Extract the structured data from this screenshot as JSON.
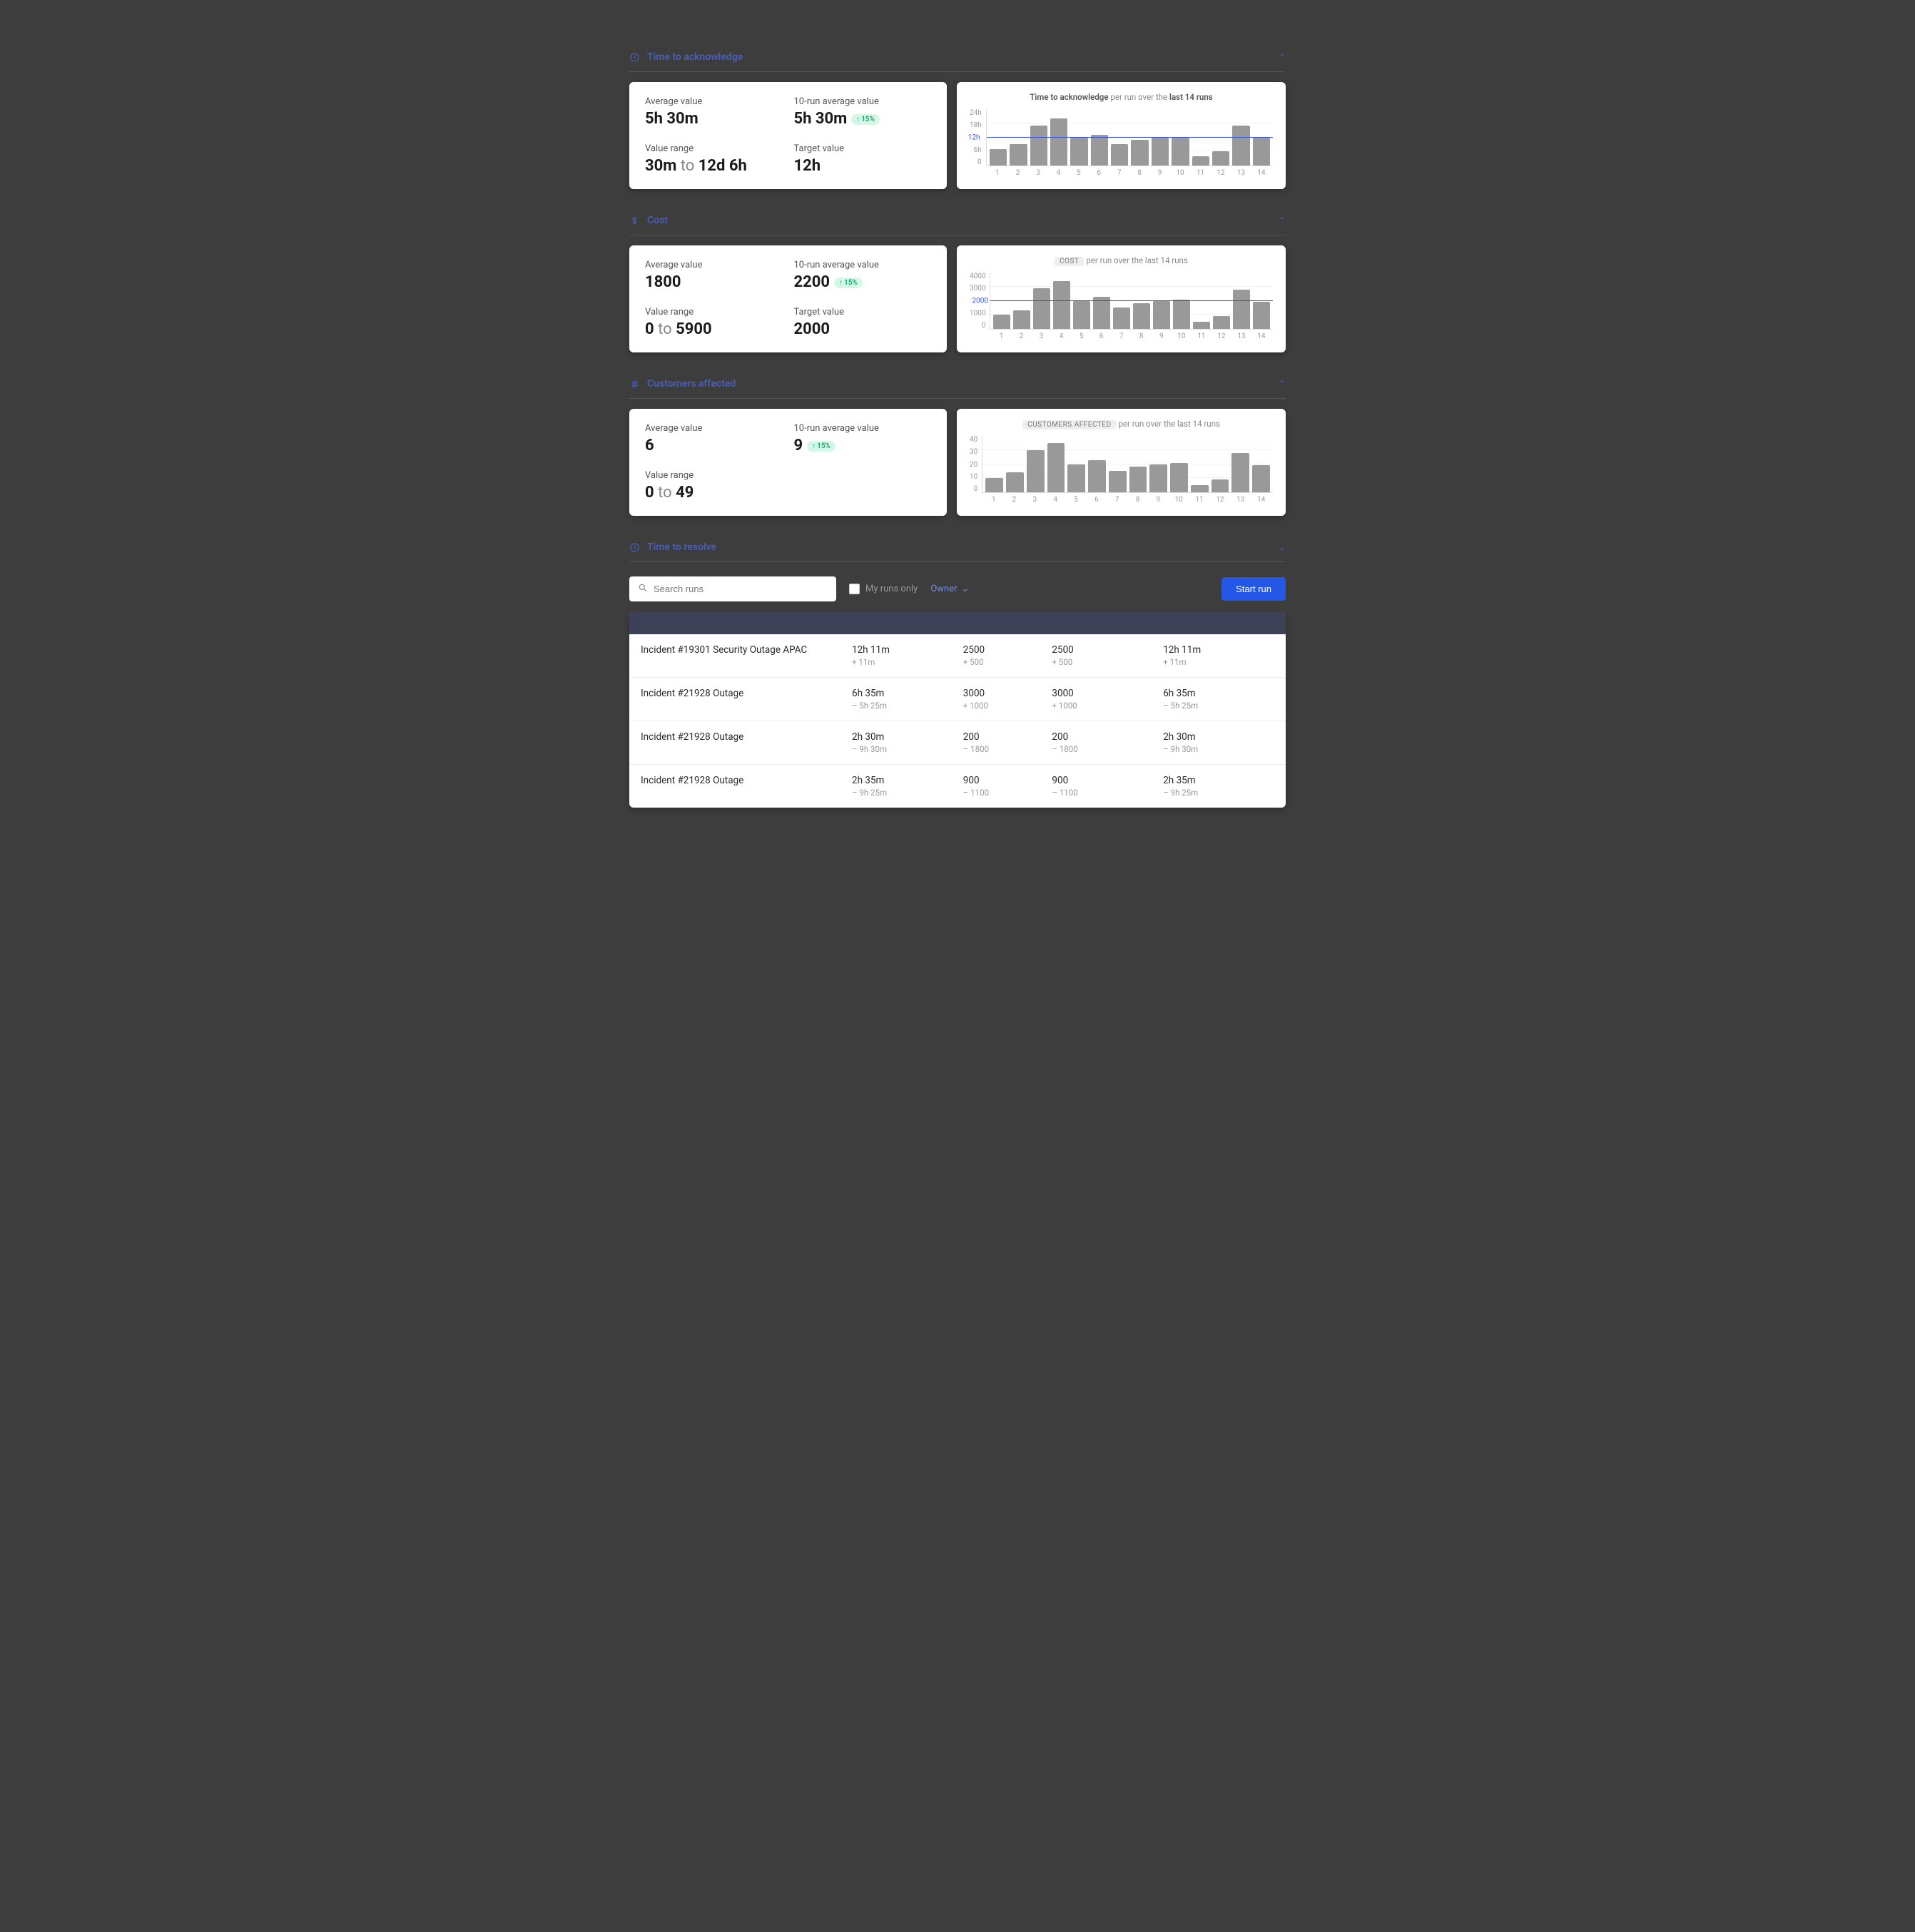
{
  "sections": [
    {
      "id": "tta",
      "icon": "clock",
      "title": "Time to acknowledge",
      "stats": {
        "avg_label": "Average value",
        "avg_value": "5h 30m",
        "ravg_label": "10-run average value",
        "ravg_value": "5h 30m",
        "ravg_badge": "15%",
        "range_label": "Value range",
        "range_from": "30m",
        "range_to": "12d 6h",
        "target_label": "Target value",
        "target_value": "12h"
      },
      "chart": {
        "title_pre": "Time to acknowledge",
        "title_mid": " per run over the ",
        "title_post": "last 14 runs",
        "title_style": "em",
        "y_ticks": [
          "24h",
          "18h",
          "12h",
          "6h",
          "0"
        ],
        "y_max": 24,
        "target_at": 12,
        "target_label": "12h",
        "bar_color": "#999999",
        "grid_color": "#f0f0f0",
        "target_color": "#3355dd",
        "values": [
          7,
          9,
          17,
          20,
          12,
          13,
          9,
          11,
          12,
          12,
          4,
          6,
          17,
          12
        ],
        "x_labels": [
          "1",
          "2",
          "3",
          "4",
          "5",
          "6",
          "7",
          "8",
          "9",
          "10",
          "11",
          "12",
          "13",
          "14"
        ]
      }
    },
    {
      "id": "cost",
      "icon": "dollar",
      "title": "Cost",
      "stats": {
        "avg_label": "Average value",
        "avg_value": "1800",
        "ravg_label": "10-run average value",
        "ravg_value": "2200",
        "ravg_badge": "15%",
        "range_label": "Value range",
        "range_from": "0",
        "range_to": "5900",
        "target_label": "Target value",
        "target_value": "2000"
      },
      "chart": {
        "title_pill": "COST",
        "title_mid": " per run over the last 14 runs",
        "title_style": "pill",
        "y_ticks": [
          "4000",
          "3000",
          "2000",
          "1000",
          "0"
        ],
        "y_max": 4000,
        "target_at": 2000,
        "target_label": "2000",
        "bar_color": "#999999",
        "grid_color": "#f0f0f0",
        "target_color": "#3355dd",
        "values": [
          1000,
          1300,
          2900,
          3400,
          2000,
          2300,
          1500,
          1800,
          2000,
          2100,
          500,
          900,
          2800,
          1900
        ],
        "x_labels": [
          "1",
          "2",
          "3",
          "4",
          "5",
          "6",
          "7",
          "8",
          "9",
          "10",
          "11",
          "12",
          "13",
          "14"
        ]
      }
    },
    {
      "id": "cust",
      "icon": "hash",
      "title": "Customers affected",
      "stats": {
        "avg_label": "Average value",
        "avg_value": "6",
        "ravg_label": "10-run average value",
        "ravg_value": "9",
        "ravg_badge": "15%",
        "range_label": "Value range",
        "range_from": "0",
        "range_to": "49"
      },
      "chart": {
        "title_pill": "CUSTOMERS AFFECTED",
        "title_mid": " per run over the last 14 runs",
        "title_style": "pill",
        "y_ticks": [
          "40",
          "30",
          "20",
          "10",
          "0"
        ],
        "y_max": 40,
        "bar_color": "#999999",
        "grid_color": "#f0f0f0",
        "values": [
          10,
          14,
          30,
          35,
          20,
          23,
          15,
          18,
          20,
          21,
          5,
          9,
          28,
          19
        ],
        "x_labels": [
          "1",
          "2",
          "3",
          "4",
          "5",
          "6",
          "7",
          "8",
          "9",
          "10",
          "11",
          "12",
          "13",
          "14"
        ]
      }
    }
  ],
  "collapsed": {
    "icon": "clock",
    "title": "Time to resolve"
  },
  "runs_bar": {
    "search_placeholder": "Search runs",
    "my_runs_label": "My runs only",
    "owner_label": "Owner",
    "start_btn": "Start run"
  },
  "table": {
    "rows": [
      {
        "name": "Incident #19301 Security Outage APAC",
        "c1": "12h 11m",
        "c1d": "+ 11m",
        "c2": "2500",
        "c2d": "+ 500",
        "c3": "2500",
        "c3d": "+ 500",
        "c4": "12h 11m",
        "c4d": "+ 11m"
      },
      {
        "name": "Incident #21928 Outage",
        "c1": "6h 35m",
        "c1d": "– 5h 25m",
        "c2": "3000",
        "c2d": "+ 1000",
        "c3": "3000",
        "c3d": "+ 1000",
        "c4": "6h 35m",
        "c4d": "– 5h 25m"
      },
      {
        "name": "Incident #21928 Outage",
        "c1": "2h 30m",
        "c1d": "– 9h 30m",
        "c2": "200",
        "c2d": "– 1800",
        "c3": "200",
        "c3d": "– 1800",
        "c4": "2h 30m",
        "c4d": "– 9h 30m"
      },
      {
        "name": "Incident #21928 Outage",
        "c1": "2h 35m",
        "c1d": "– 9h 25m",
        "c2": "900",
        "c2d": "– 1100",
        "c3": "900",
        "c3d": "– 1100",
        "c4": "2h 35m",
        "c4d": "– 9h 25m"
      }
    ]
  }
}
